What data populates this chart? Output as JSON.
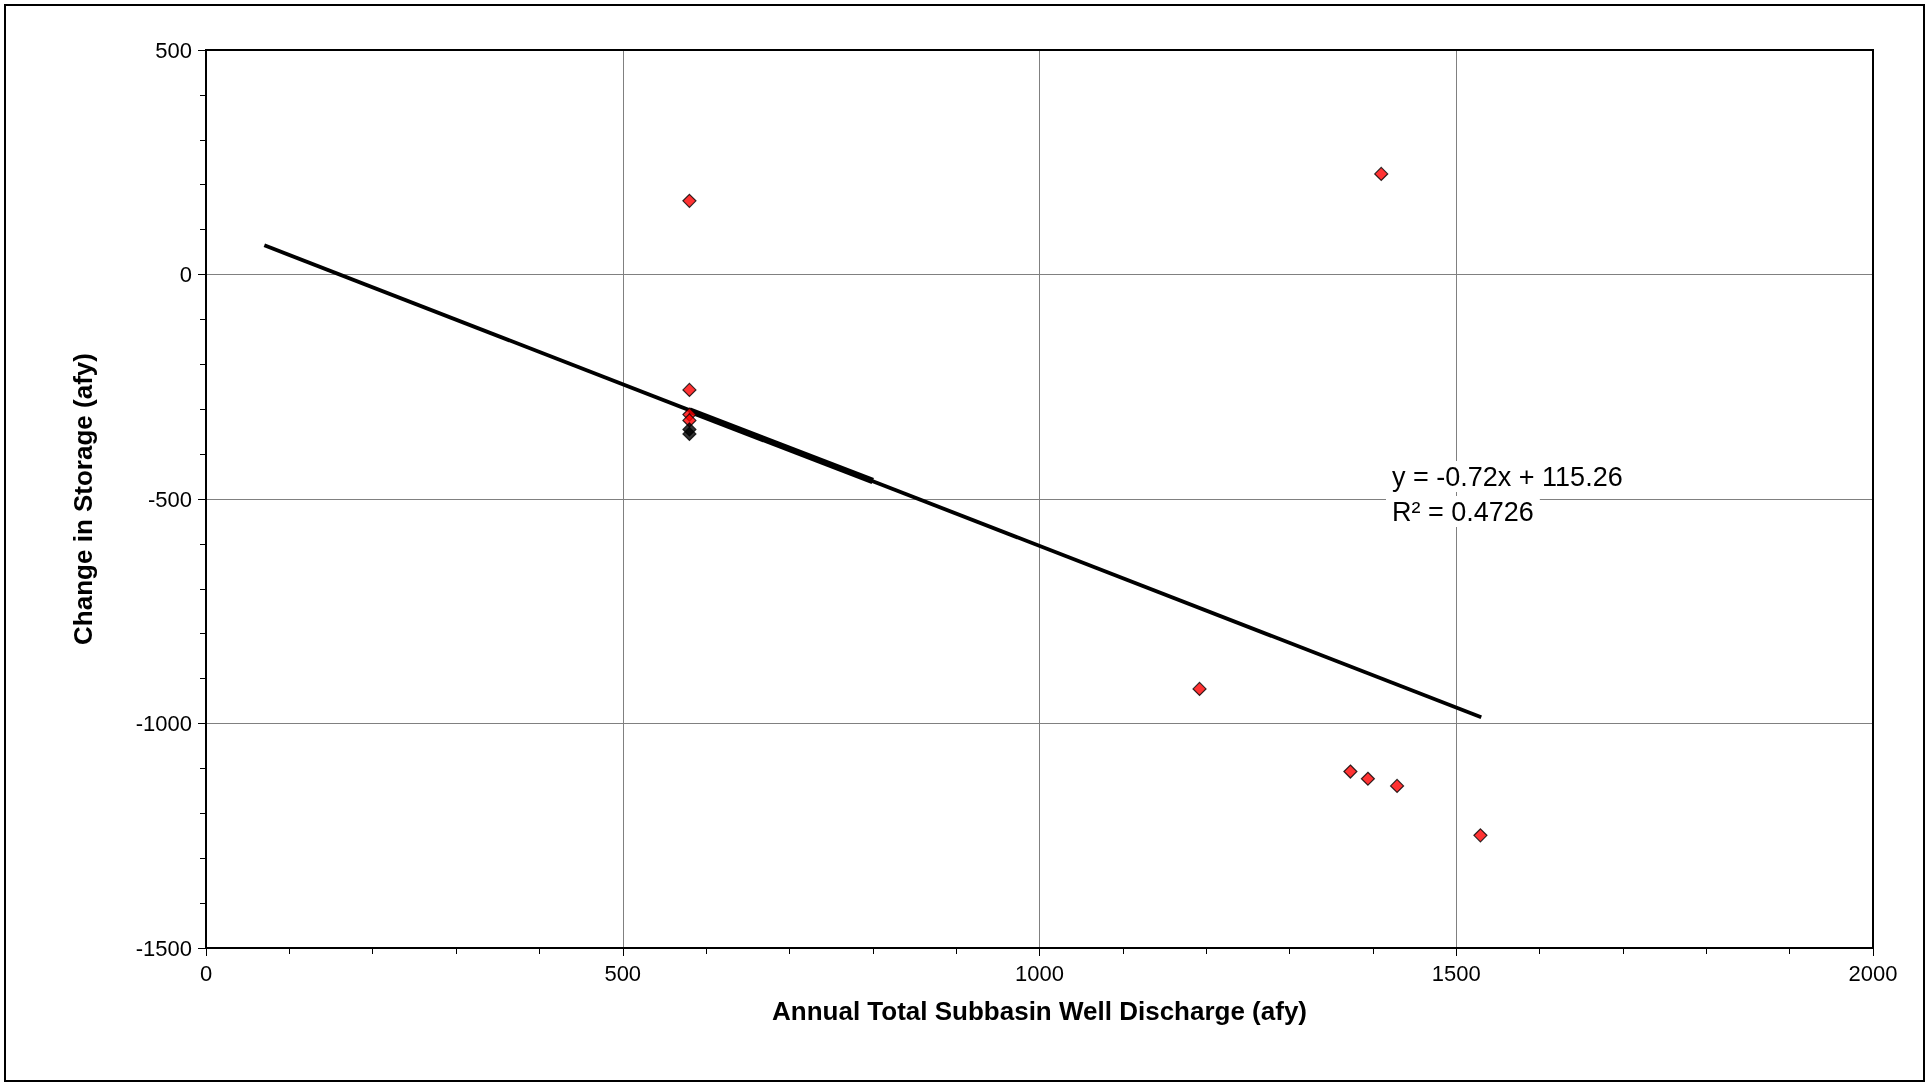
{
  "chart_data": {
    "type": "scatter",
    "xlabel": "Annual Total Subbasin Well Discharge (afy)",
    "ylabel": "Change in Storage (afy)",
    "xlim": [
      0,
      2000
    ],
    "xticks": [
      0,
      500,
      1000,
      1500,
      2000
    ],
    "ylim": [
      -1500,
      500
    ],
    "yticks": [
      -1500,
      -1000,
      -500,
      0,
      500
    ],
    "grid": true,
    "marker": "diamond",
    "series": [
      {
        "type": "scatter",
        "color": "#ff0000",
        "x": [
          580,
          1410,
          580,
          580,
          580,
          1192,
          1373,
          1394,
          1429,
          1529
        ],
        "values": [
          164,
          224,
          -257,
          -312,
          -325,
          -923,
          -1107,
          -1123,
          -1139,
          -1249
        ]
      },
      {
        "type": "scatter",
        "color": "#000000",
        "x": [
          580,
          580
        ],
        "values": [
          -345,
          -355
        ]
      },
      {
        "type": "line",
        "color": "#000000",
        "marker": "none",
        "x": [
          70,
          1530
        ],
        "values": [
          65,
          -986
        ]
      },
      {
        "type": "line",
        "color": "#000000",
        "marker": "none",
        "x": [
          580,
          800
        ],
        "values": [
          -303,
          -460
        ]
      }
    ],
    "annotations": [
      "y = -0.72x + 115.26",
      "R² = 0.4726"
    ]
  }
}
